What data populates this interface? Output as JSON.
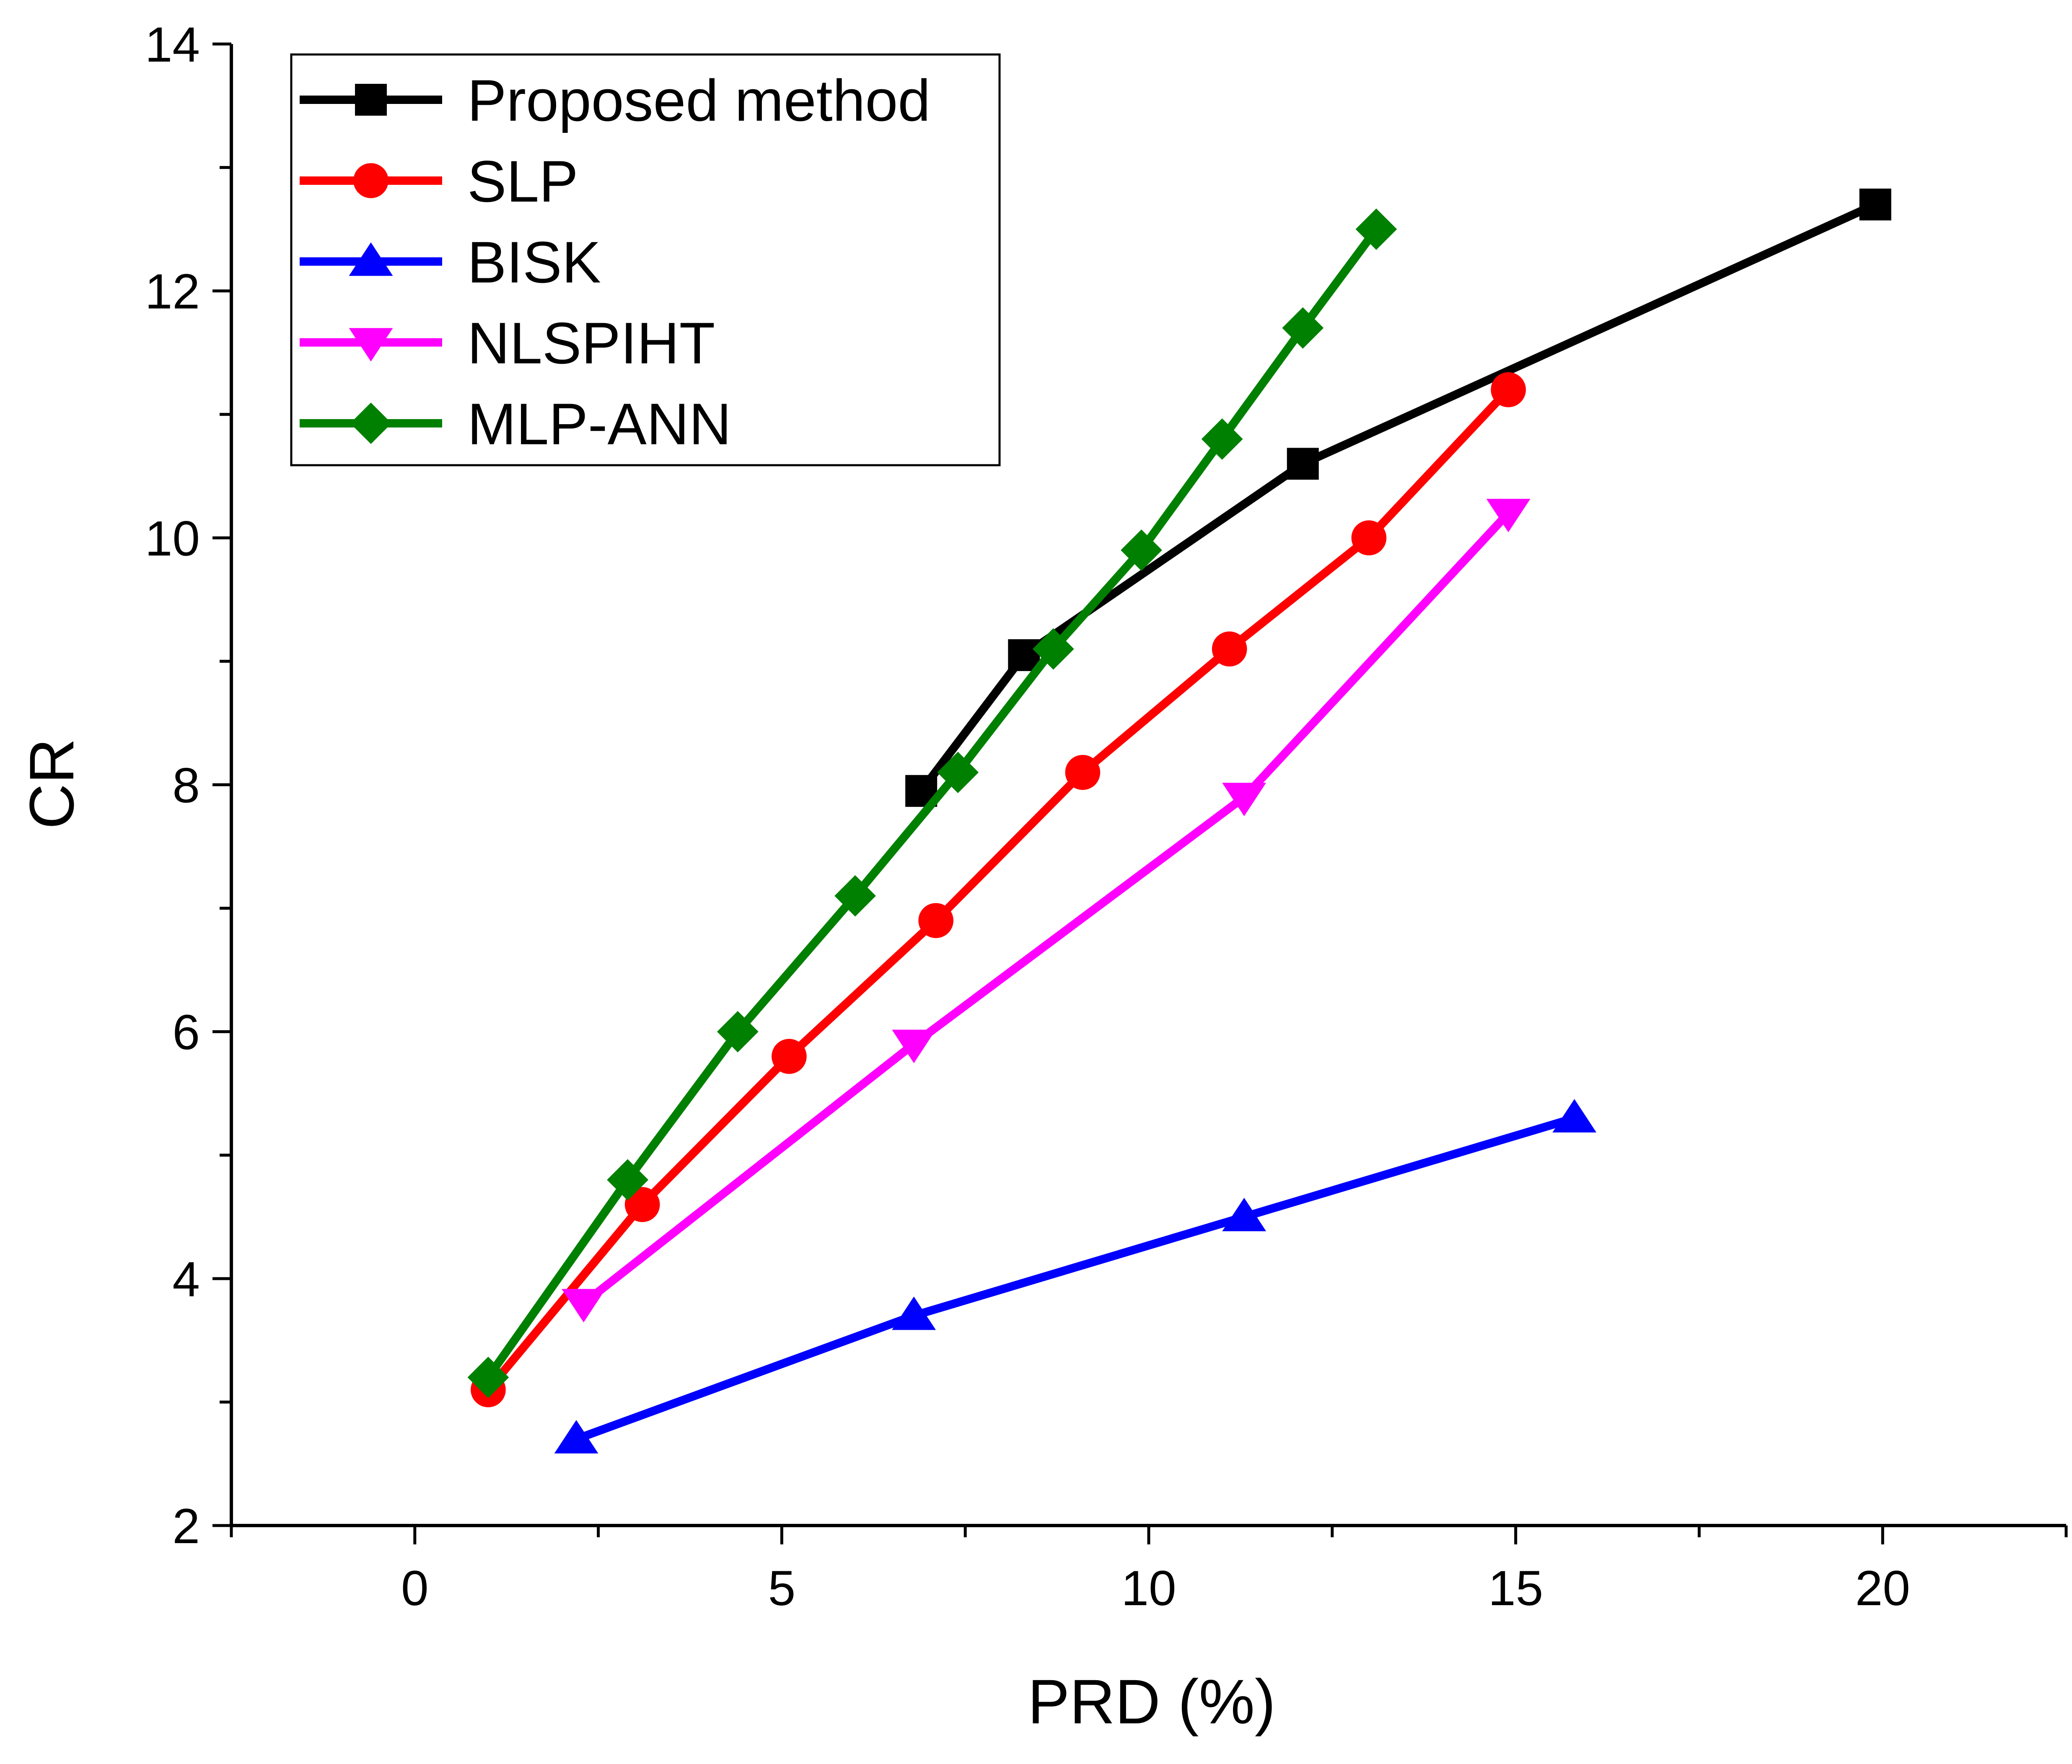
{
  "chart_data": {
    "type": "line",
    "title": "",
    "xlabel": "PRD (%)",
    "ylabel": "CR",
    "xlim": [
      -2.5,
      22.5
    ],
    "ylim": [
      2,
      14
    ],
    "xticks": [
      0,
      5,
      10,
      15,
      20
    ],
    "yticks": [
      2,
      4,
      6,
      8,
      10,
      12,
      14
    ],
    "grid": false,
    "legend_position": "top-left",
    "series": [
      {
        "name": "Proposed method",
        "color": "#000000",
        "marker": "square",
        "points": [
          [
            6.9,
            7.95
          ],
          [
            8.3,
            9.05
          ],
          [
            12.1,
            10.6
          ],
          [
            19.9,
            12.7
          ]
        ]
      },
      {
        "name": "SLP",
        "color": "#ff0000",
        "marker": "circle",
        "points": [
          [
            1.0,
            3.1
          ],
          [
            3.1,
            4.6
          ],
          [
            5.1,
            5.8
          ],
          [
            7.1,
            6.9
          ],
          [
            9.1,
            8.1
          ],
          [
            11.1,
            9.1
          ],
          [
            13.0,
            10.0
          ],
          [
            14.9,
            11.2
          ]
        ]
      },
      {
        "name": "BISK",
        "color": "#0000ff",
        "marker": "triangle-up",
        "points": [
          [
            2.2,
            2.7
          ],
          [
            6.8,
            3.7
          ],
          [
            11.3,
            4.5
          ],
          [
            15.8,
            5.3
          ]
        ]
      },
      {
        "name": "NLSPIHT",
        "color": "#ff00ff",
        "marker": "triangle-down",
        "points": [
          [
            2.3,
            3.8
          ],
          [
            6.8,
            5.9
          ],
          [
            11.3,
            7.9
          ],
          [
            14.9,
            10.2
          ]
        ]
      },
      {
        "name": "MLP-ANN",
        "color": "#008000",
        "marker": "diamond",
        "points": [
          [
            1.0,
            3.2
          ],
          [
            2.9,
            4.8
          ],
          [
            4.4,
            6.0
          ],
          [
            6.0,
            7.1
          ],
          [
            7.4,
            8.1
          ],
          [
            8.7,
            9.1
          ],
          [
            9.9,
            9.9
          ],
          [
            11.0,
            10.8
          ],
          [
            12.1,
            11.7
          ],
          [
            13.1,
            12.5
          ]
        ]
      }
    ]
  }
}
